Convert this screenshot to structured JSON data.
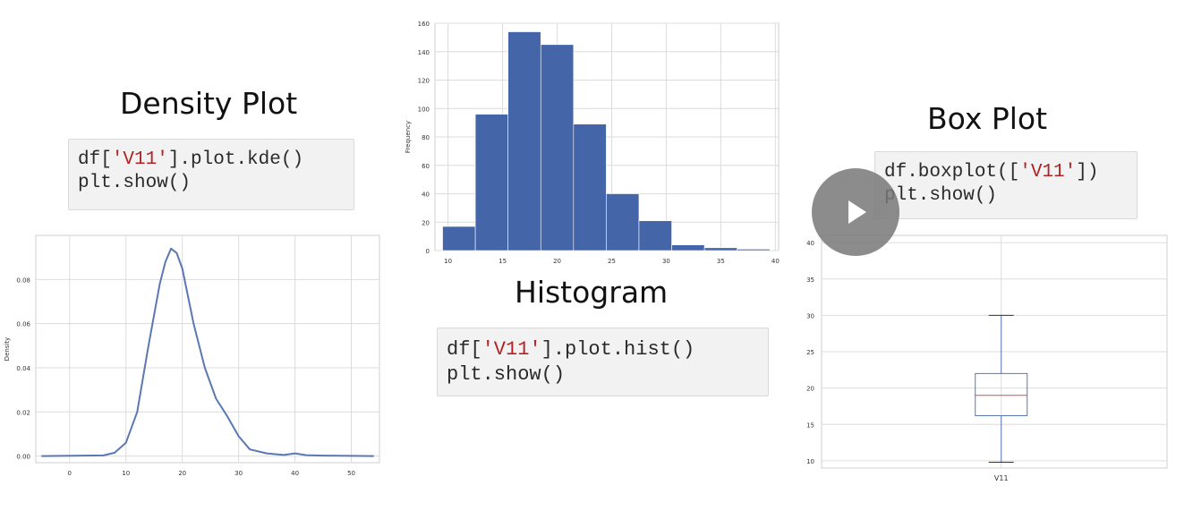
{
  "density": {
    "title": "Density Plot",
    "code": {
      "l1_a": "df[",
      "l1_s": "'V11'",
      "l1_b": "].plot.kde()",
      "l2": "plt.show()"
    }
  },
  "histogram": {
    "title": "Histogram",
    "code": {
      "l1_a": "df[",
      "l1_s": "'V11'",
      "l1_b": "].plot.hist()",
      "l2": "plt.show()"
    }
  },
  "box": {
    "title": "Box Plot",
    "code": {
      "l1_a": "df.boxplot([",
      "l1_s": "'V11'",
      "l1_b": "])",
      "l2": "plt.show()"
    }
  },
  "colors": {
    "bar": "#4465a8",
    "line": "#5a78b3",
    "median": "#d94f4f",
    "grid": "#dcdcdc"
  },
  "chart_data": [
    {
      "id": "density",
      "type": "line",
      "title": "",
      "xlabel": "",
      "ylabel": "Density",
      "xlim": [
        -6,
        55
      ],
      "ylim": [
        -0.003,
        0.1
      ],
      "grid": true,
      "x_ticks": [
        0,
        10,
        20,
        30,
        40,
        50
      ],
      "x_tick_labels": [
        "0",
        "10",
        "20",
        "30",
        "40",
        "50"
      ],
      "y_ticks": [
        0.0,
        0.02,
        0.04,
        0.06,
        0.08
      ],
      "y_tick_labels": [
        "0.00",
        "0.02",
        "0.04",
        "0.06",
        "0.08"
      ],
      "series": [
        {
          "x": [
            -5,
            6,
            8,
            10,
            12,
            14,
            16,
            17,
            18,
            19,
            20,
            22,
            24,
            26,
            28,
            30,
            32,
            35,
            38,
            40,
            42,
            45,
            50,
            54
          ],
          "values": [
            0,
            0.0003,
            0.0015,
            0.006,
            0.02,
            0.05,
            0.078,
            0.088,
            0.094,
            0.092,
            0.085,
            0.06,
            0.04,
            0.026,
            0.018,
            0.009,
            0.003,
            0.0012,
            0.0005,
            0.0012,
            0.0004,
            0.0002,
            0.0001,
            0
          ]
        }
      ]
    },
    {
      "id": "histogram",
      "type": "bar",
      "title": "",
      "xlabel": "",
      "ylabel": "Frequency",
      "xlim": [
        8.8,
        40.3
      ],
      "ylim": [
        0,
        160
      ],
      "grid": true,
      "x_ticks": [
        10,
        15,
        20,
        25,
        30,
        35,
        40
      ],
      "x_tick_labels": [
        "10",
        "15",
        "20",
        "25",
        "30",
        "35",
        "40"
      ],
      "y_ticks": [
        0,
        20,
        40,
        60,
        80,
        100,
        120,
        140,
        160
      ],
      "y_tick_labels": [
        "0",
        "20",
        "40",
        "60",
        "80",
        "100",
        "120",
        "140",
        "160"
      ],
      "bin_edges": [
        9.5,
        12.5,
        15.5,
        18.5,
        21.5,
        24.5,
        27.5,
        30.5,
        33.5,
        36.5,
        39.5
      ],
      "values": [
        17,
        96,
        154,
        145,
        89,
        40,
        21,
        4,
        2,
        1
      ]
    },
    {
      "id": "box",
      "type": "box",
      "title": "",
      "xlabel": "",
      "ylabel": "",
      "ylim": [
        9,
        41
      ],
      "grid": true,
      "categories": [
        "V11"
      ],
      "y_ticks": [
        10,
        15,
        20,
        25,
        30,
        35,
        40
      ],
      "y_tick_labels": [
        "10",
        "15",
        "20",
        "25",
        "30",
        "35",
        "40"
      ],
      "stats": {
        "whisker_low": 9.8,
        "q1": 16.2,
        "median": 19.0,
        "q3": 22.0,
        "whisker_high": 30.0
      }
    }
  ]
}
